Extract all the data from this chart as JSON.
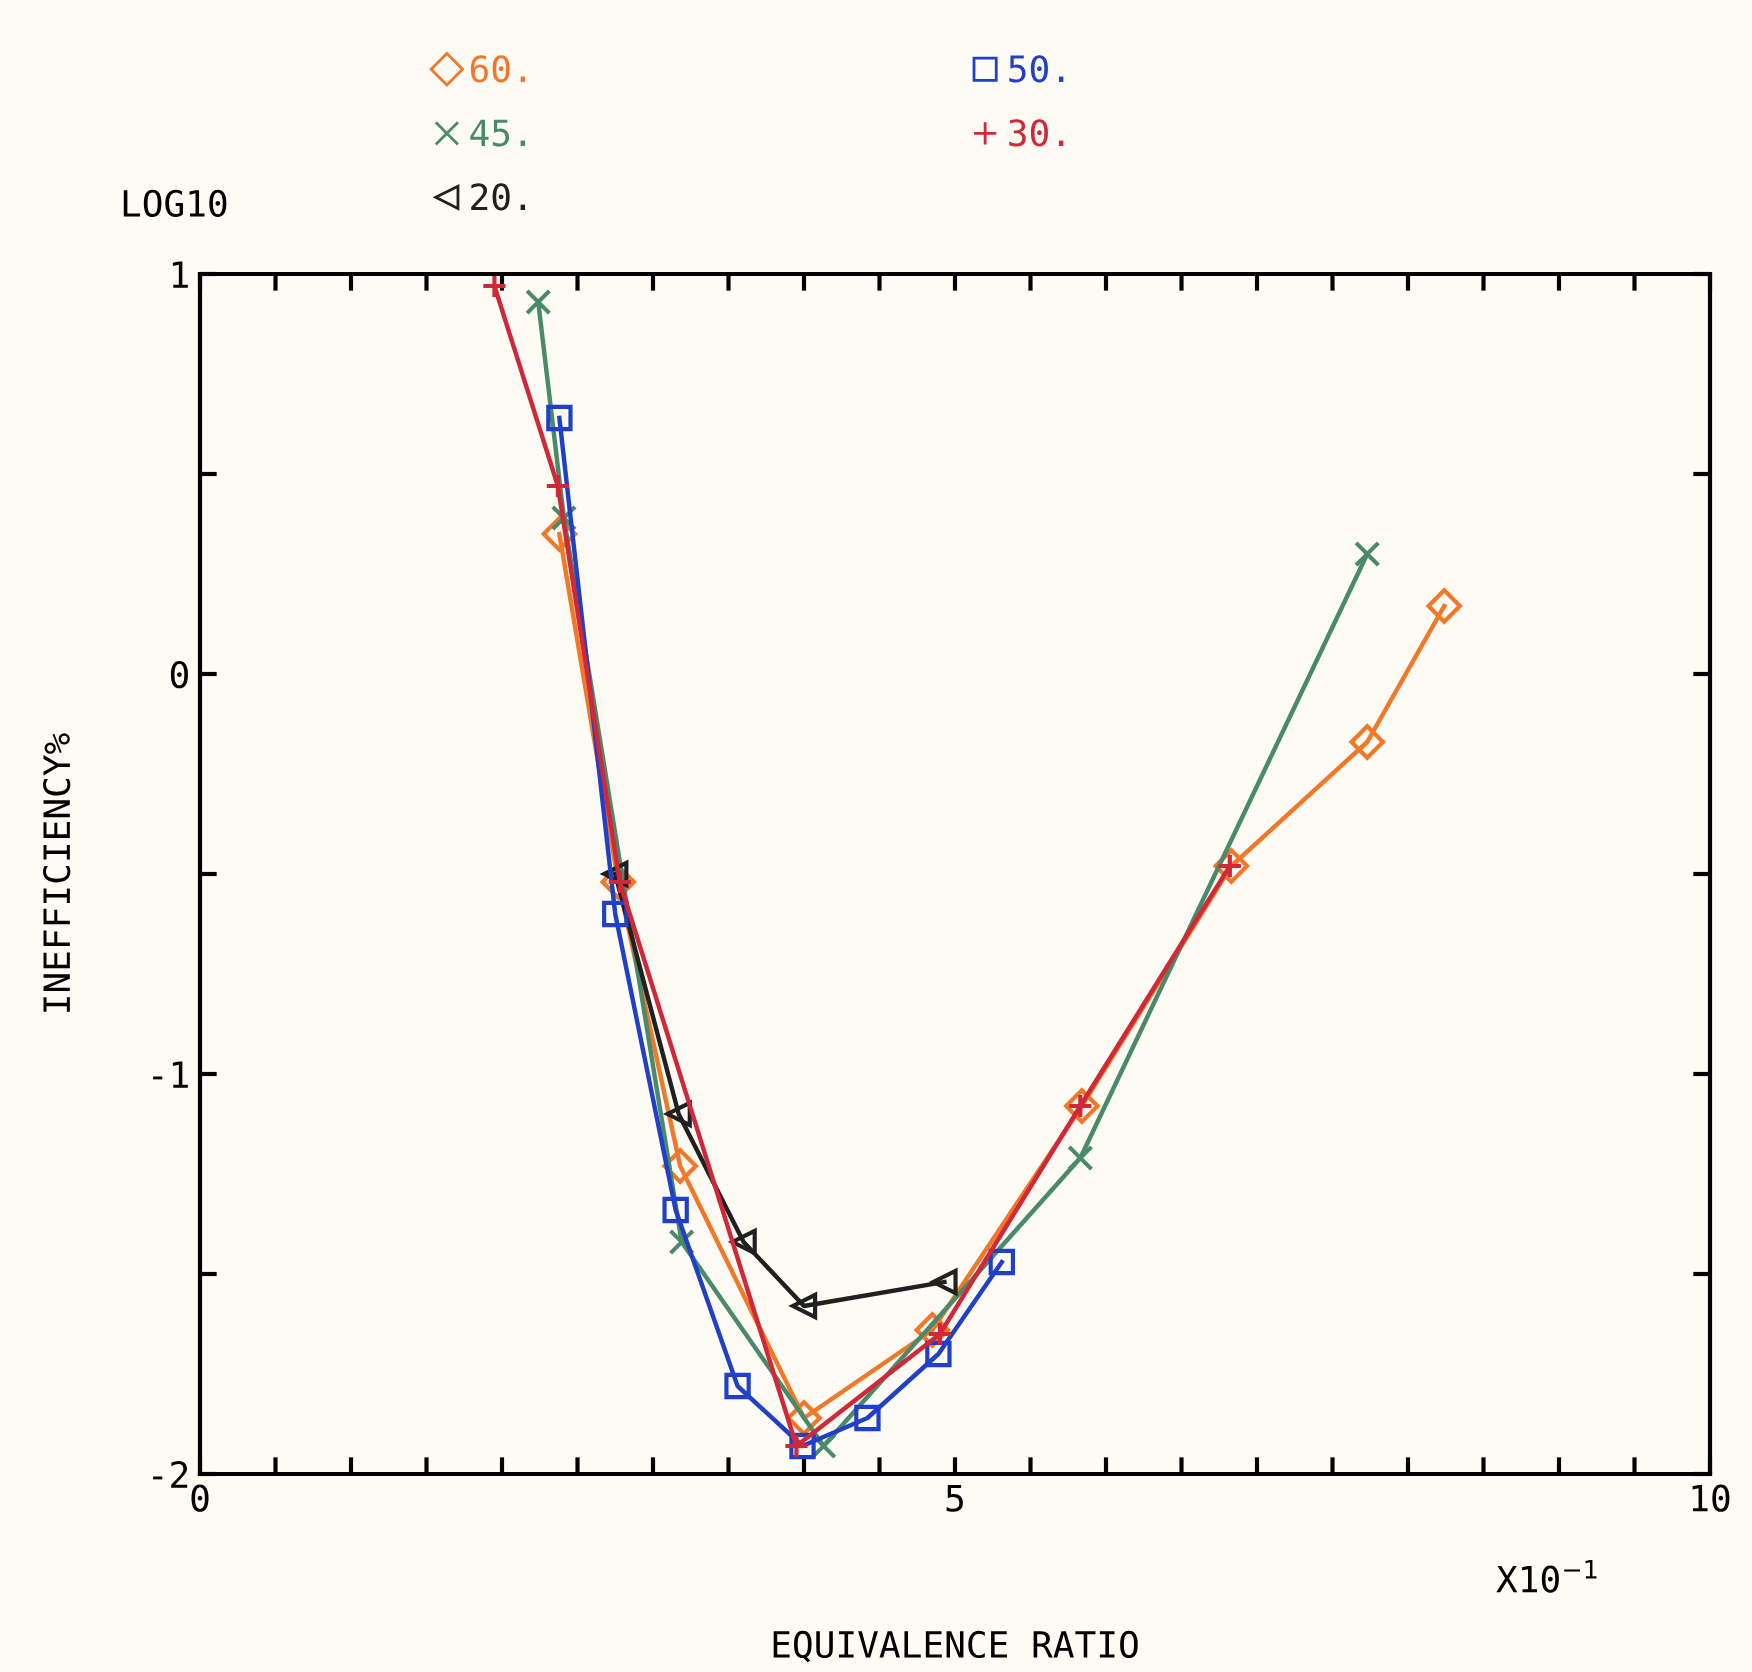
{
  "chart_data": {
    "type": "line",
    "xlabel": "EQUIVALENCE RATIO",
    "ylabel": "INEFFICIENCY%",
    "annotations": [
      "LOG10",
      "X10$^{−1}$"
    ],
    "xlim": [
      0,
      10
    ],
    "ylim": [
      -2,
      1
    ],
    "xticks": [
      0,
      {
        "value": 0.5,
        "label": null
      },
      {
        "value": 1,
        "label": null
      },
      {
        "value": 1.5,
        "label": null
      },
      {
        "value": 2,
        "label": null
      },
      {
        "value": 2.5,
        "label": null
      },
      {
        "value": 3,
        "label": null
      },
      {
        "value": 3.5,
        "label": null
      },
      {
        "value": 4,
        "label": null
      },
      {
        "value": 4.5,
        "label": null
      },
      5,
      {
        "value": 5.5,
        "label": null
      },
      {
        "value": 6,
        "label": null
      },
      {
        "value": 6.5,
        "label": null
      },
      {
        "value": 7,
        "label": null
      },
      {
        "value": 7.5,
        "label": null
      },
      {
        "value": 8,
        "label": null
      },
      {
        "value": 8.5,
        "label": null
      },
      {
        "value": 9,
        "label": null
      },
      {
        "value": 9.5,
        "label": null
      },
      10
    ],
    "yticks": [
      -2,
      {
        "value": -1.5,
        "label": null
      },
      -1,
      {
        "value": -0.5,
        "label": null
      },
      0,
      {
        "value": 0.5,
        "label": null
      },
      1
    ],
    "grid": false,
    "legend": "top",
    "line_style": "solid",
    "series": [
      {
        "name": "60.",
        "color": "#f07828",
        "marker": "diamond",
        "x": [
          2.38,
          2.77,
          3.18,
          4.0,
          4.85,
          5.84,
          6.83,
          7.73,
          8.24
        ],
        "values": [
          0.35,
          -0.52,
          -1.23,
          -1.86,
          -1.64,
          -1.08,
          -0.48,
          -0.17,
          0.17
        ]
      },
      {
        "name": "45.",
        "color": "#4a8a6a",
        "marker": "cross",
        "x": [
          2.24,
          2.41,
          3.19,
          4.13,
          5.83,
          7.73
        ],
        "values": [
          0.93,
          0.39,
          -1.42,
          -1.93,
          -1.21,
          0.3
        ]
      },
      {
        "name": "20.",
        "color": "#202020",
        "marker": "triangle",
        "x": [
          2.75,
          3.17,
          3.6,
          4.0,
          4.93
        ],
        "values": [
          -0.5,
          -1.1,
          -1.42,
          -1.58,
          -1.52
        ]
      },
      {
        "name": "50.",
        "color": "#2040c8",
        "marker": "square",
        "x": [
          2.38,
          2.75,
          3.15,
          3.56,
          3.99,
          4.42,
          4.89,
          5.31
        ],
        "values": [
          0.64,
          -0.6,
          -1.34,
          -1.78,
          -1.93,
          -1.86,
          -1.7,
          -1.47
        ]
      },
      {
        "name": "30.",
        "color": "#d02838",
        "marker": "plus",
        "x": [
          1.95,
          2.37,
          2.78,
          3.95,
          4.9,
          5.83,
          6.82
        ],
        "values": [
          0.97,
          0.47,
          -0.52,
          -1.93,
          -1.65,
          -1.08,
          -0.48
        ]
      }
    ]
  }
}
